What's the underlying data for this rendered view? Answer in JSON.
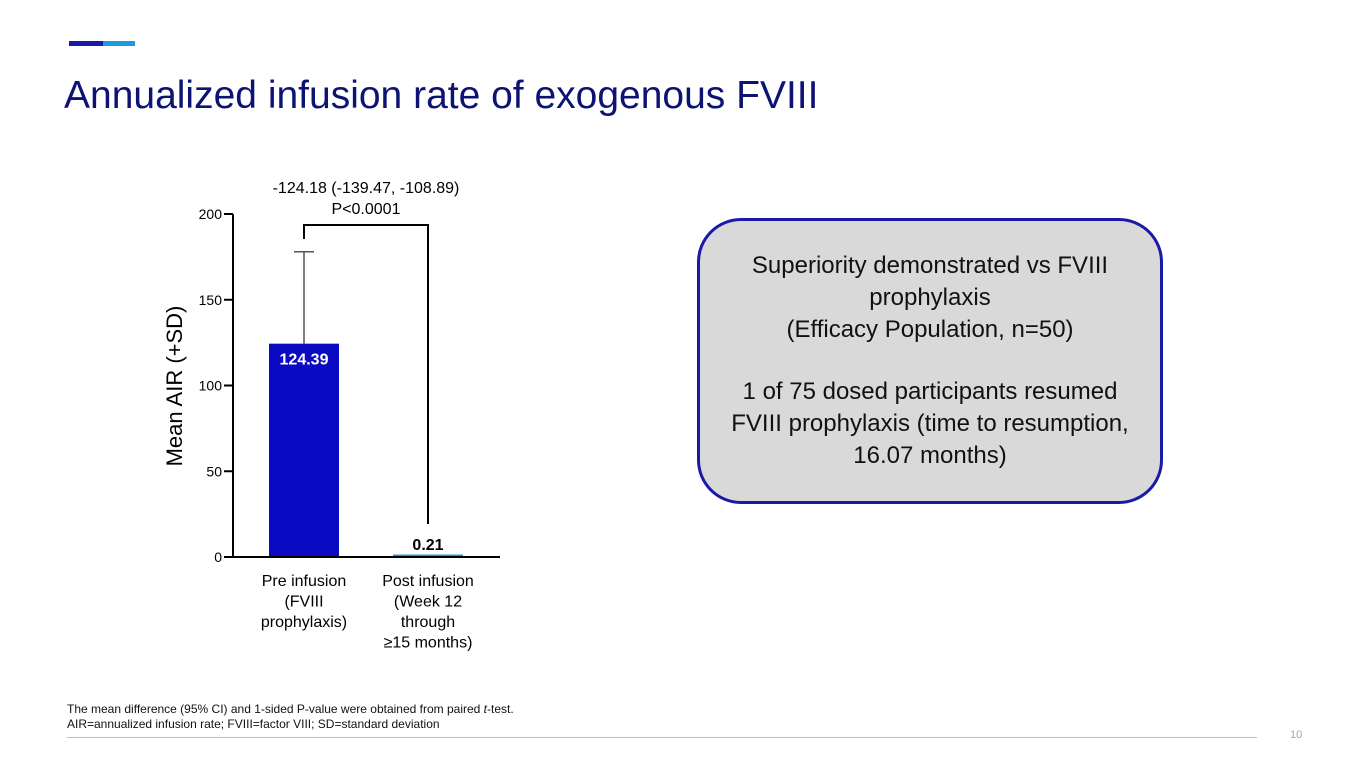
{
  "slide": {
    "title": "Annualized infusion rate of exogenous FVIII",
    "page_number": "10"
  },
  "colors": {
    "accent_dark": "#1a1aa6",
    "accent_light": "#1e9be0",
    "bar_pre": "#0a0ac2",
    "bar_post": "#1e9be0",
    "title": "#0c1373"
  },
  "chart_data": {
    "type": "bar",
    "ylabel": "Mean AIR (+SD)",
    "xlabel": "",
    "ylim": [
      0,
      200
    ],
    "yticks": [
      "0",
      "50",
      "100",
      "150",
      "200"
    ],
    "categories": [
      [
        "Pre infusion",
        "(FVIII",
        "prophylaxis)"
      ],
      [
        "Post infusion",
        "(Week 12",
        "through",
        "≥15 months)"
      ]
    ],
    "values": [
      124.39,
      0.21
    ],
    "value_labels": [
      "124.39",
      "0.21"
    ],
    "error_upper": [
      178.0,
      null
    ],
    "comparison": {
      "line1": "-124.18 (-139.47, -108.89)",
      "line2": "P<0.0001"
    }
  },
  "callout": {
    "line1": "Superiority demonstrated vs FVIII prophylaxis",
    "line2": "(Efficacy Population, n=50)",
    "line3": "1 of 75 dosed participants resumed FVIII prophylaxis (time to resumption, 16.07 months)"
  },
  "footnotes": {
    "line1_pre": "The mean difference (95% CI) and 1-sided P-value were obtained from paired ",
    "line1_italic": "t",
    "line1_post": "-test.",
    "line2": "AIR=annualized infusion rate; FVIII=factor VIII; SD=standard deviation"
  }
}
